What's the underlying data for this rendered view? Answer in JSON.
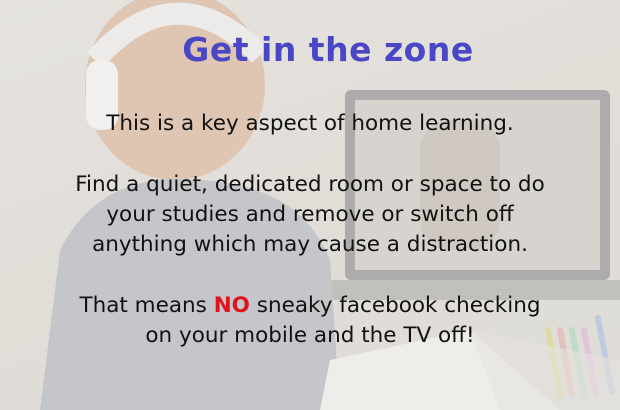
{
  "slide": {
    "title": "Get in the zone",
    "para1": "This is a key aspect of home learning.",
    "para2_lines": [
      "Find a quiet, dedicated room or space to do",
      "your studies and remove or switch off",
      "anything which may cause a distraction."
    ],
    "para3": {
      "prefix": "That means ",
      "highlight": "NO",
      "suffix": " sneaky facebook checking",
      "line2": "on your mobile and the TV off!"
    }
  },
  "colors": {
    "title": "#4a47c6",
    "highlight": "#e0141c",
    "body_text": "#111111"
  }
}
